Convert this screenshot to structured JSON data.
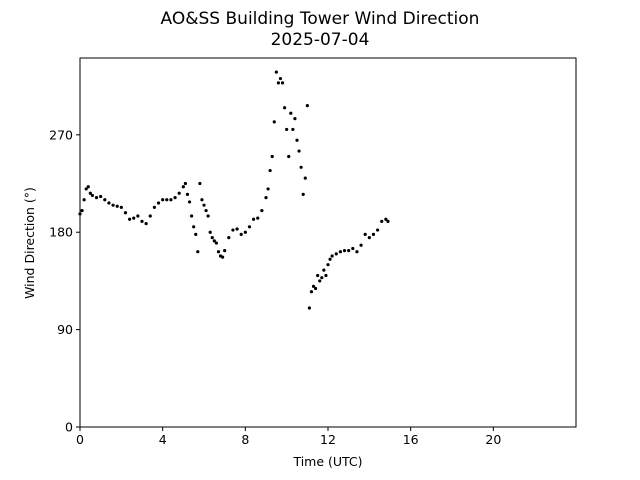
{
  "chart_data": {
    "type": "scatter",
    "title": "AO&SS Building Tower Wind Direction",
    "subtitle": "2025-07-04",
    "x_label": "Time (UTC)",
    "y_label": "Wind Direction (°)",
    "color": "#000000",
    "xlim": [
      0,
      24
    ],
    "xticks": [
      0,
      4,
      8,
      12,
      16,
      20
    ],
    "ylim": [
      0,
      341
    ],
    "yticks": [
      0,
      90,
      180,
      270
    ],
    "x": [
      0.0,
      0.1,
      0.2,
      0.3,
      0.4,
      0.5,
      0.6,
      0.8,
      1.0,
      1.2,
      1.4,
      1.6,
      1.8,
      2.0,
      2.2,
      2.4,
      2.6,
      2.8,
      3.0,
      3.2,
      3.4,
      3.6,
      3.8,
      4.0,
      4.2,
      4.4,
      4.6,
      4.8,
      5.0,
      5.1,
      5.2,
      5.3,
      5.4,
      5.5,
      5.6,
      5.7,
      5.8,
      5.9,
      6.0,
      6.1,
      6.2,
      6.3,
      6.4,
      6.5,
      6.6,
      6.7,
      6.8,
      6.9,
      7.0,
      7.2,
      7.4,
      7.6,
      7.8,
      8.0,
      8.2,
      8.4,
      8.6,
      8.8,
      9.0,
      9.1,
      9.2,
      9.3,
      9.4,
      9.5,
      9.6,
      9.7,
      9.8,
      9.9,
      10.0,
      10.1,
      10.2,
      10.3,
      10.4,
      10.5,
      10.6,
      10.7,
      10.8,
      10.9,
      11.0,
      11.1,
      11.2,
      11.3,
      11.4,
      11.5,
      11.6,
      11.7,
      11.8,
      11.9,
      12.0,
      12.1,
      12.2,
      12.4,
      12.6,
      12.8,
      13.0,
      13.2,
      13.4,
      13.6,
      13.8,
      14.0,
      14.2,
      14.4,
      14.6,
      14.8,
      14.9
    ],
    "values": [
      197,
      200,
      210,
      220,
      222,
      216,
      214,
      212,
      213,
      210,
      207,
      205,
      204,
      203,
      198,
      192,
      193,
      195,
      190,
      188,
      195,
      203,
      207,
      210,
      210,
      210,
      212,
      216,
      222,
      225,
      215,
      208,
      195,
      185,
      178,
      162,
      225,
      210,
      205,
      200,
      195,
      180,
      175,
      172,
      170,
      162,
      158,
      157,
      163,
      175,
      182,
      183,
      178,
      180,
      185,
      192,
      193,
      200,
      212,
      220,
      237,
      250,
      282,
      328,
      318,
      322,
      318,
      295,
      275,
      250,
      290,
      275,
      285,
      265,
      255,
      240,
      215,
      230,
      297,
      110,
      125,
      130,
      128,
      140,
      135,
      138,
      145,
      140,
      150,
      155,
      158,
      160,
      162,
      163,
      163,
      165,
      162,
      168,
      178,
      175,
      178,
      182,
      190,
      192,
      190
    ]
  }
}
